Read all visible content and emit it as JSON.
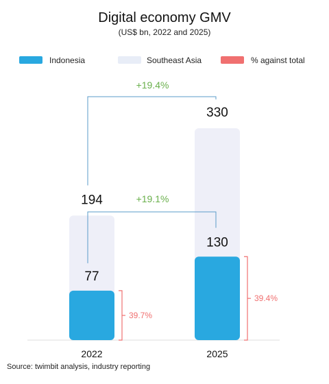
{
  "chart_data": {
    "type": "bar",
    "title": "Digital economy GMV",
    "subtitle": "(US$ bn, 2022 and 2025)",
    "categories": [
      "2022",
      "2025"
    ],
    "series": [
      {
        "name": "Southeast Asia",
        "values": [
          194,
          330
        ],
        "color": "#eeeff8"
      },
      {
        "name": "Indonesia",
        "values": [
          77,
          130
        ],
        "color": "#29a8e0"
      }
    ],
    "pct_series": {
      "name": "% against total",
      "values": [
        "39.7%",
        "39.4%"
      ],
      "color": "#f07070"
    },
    "growth": {
      "southeast_asia": "+19.4%",
      "indonesia": "+19.1%",
      "color": "#6ab04c"
    },
    "legend": {
      "position": "top",
      "items": [
        {
          "label": "Indonesia",
          "color": "#29a8e0"
        },
        {
          "label": "Southeast Asia",
          "color": "#eeeff8"
        },
        {
          "label": "% against total",
          "color": "#f07070"
        }
      ]
    },
    "ylim": [
      0,
      330
    ],
    "grid": false
  },
  "source": "Source: twimbit analysis, industry reporting"
}
